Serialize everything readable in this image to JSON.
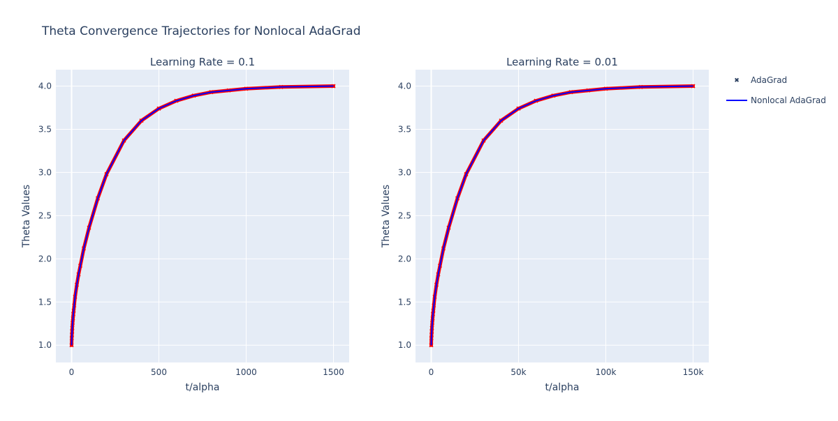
{
  "title": "Theta Convergence Trajectories for Nonlocal AdaGrad",
  "colors": {
    "adagrad": "#ff0000",
    "nonlocal": "#0000ff",
    "plot_bg": "#e5ecf6",
    "grid": "#ffffff",
    "text": "#2a3f5f"
  },
  "legend": {
    "position": "top-right",
    "items": [
      "AdaGrad",
      "Nonlocal AdaGrad"
    ]
  },
  "chart_data": [
    {
      "type": "line",
      "subtitle": "Learning Rate = 0.1",
      "xlabel": "t/alpha",
      "ylabel": "Theta Values",
      "xlim": [
        -90,
        1590
      ],
      "ylim": [
        0.8,
        4.19
      ],
      "xticks": [
        0,
        500,
        1000,
        1500
      ],
      "xtick_labels": [
        "0",
        "500",
        "1000",
        "1500"
      ],
      "yticks": [
        1.0,
        1.5,
        2.0,
        2.5,
        3.0,
        3.5,
        4.0
      ],
      "ytick_labels": [
        "1.0",
        "1.5",
        "2.0",
        "2.5",
        "3.0",
        "3.5",
        "4.0"
      ],
      "series": [
        {
          "name": "AdaGrad",
          "mode": "markers",
          "x": [
            0,
            1,
            2,
            3,
            4,
            6,
            8,
            10,
            12,
            15,
            20,
            30,
            40,
            50,
            70,
            100,
            150,
            200,
            300,
            400,
            500,
            600,
            700,
            800,
            900,
            1000,
            1200,
            1500
          ],
          "y": [
            1.0,
            1.08,
            1.12,
            1.16,
            1.2,
            1.26,
            1.31,
            1.36,
            1.4,
            1.46,
            1.56,
            1.7,
            1.82,
            1.92,
            2.12,
            2.36,
            2.7,
            2.98,
            3.37,
            3.6,
            3.74,
            3.83,
            3.89,
            3.93,
            3.95,
            3.97,
            3.99,
            4.0
          ]
        },
        {
          "name": "Nonlocal AdaGrad",
          "mode": "lines",
          "x": [
            0,
            1,
            2,
            3,
            4,
            6,
            8,
            10,
            12,
            15,
            20,
            30,
            40,
            50,
            70,
            100,
            150,
            200,
            300,
            400,
            500,
            600,
            700,
            800,
            900,
            1000,
            1200,
            1500
          ],
          "y": [
            1.0,
            1.08,
            1.12,
            1.16,
            1.2,
            1.26,
            1.31,
            1.36,
            1.4,
            1.46,
            1.56,
            1.7,
            1.82,
            1.92,
            2.12,
            2.36,
            2.7,
            2.98,
            3.37,
            3.6,
            3.74,
            3.83,
            3.89,
            3.93,
            3.95,
            3.97,
            3.99,
            4.0
          ]
        }
      ]
    },
    {
      "type": "line",
      "subtitle": "Learning Rate = 0.01",
      "xlabel": "t/alpha",
      "ylabel": "Theta Values",
      "xlim": [
        -9000,
        159000
      ],
      "ylim": [
        0.8,
        4.19
      ],
      "xticks": [
        0,
        50000,
        100000,
        150000
      ],
      "xtick_labels": [
        "0",
        "50k",
        "100k",
        "150k"
      ],
      "yticks": [
        1.0,
        1.5,
        2.0,
        2.5,
        3.0,
        3.5,
        4.0
      ],
      "ytick_labels": [
        "1.0",
        "1.5",
        "2.0",
        "2.5",
        "3.0",
        "3.5",
        "4.0"
      ],
      "series": [
        {
          "name": "AdaGrad",
          "mode": "markers",
          "x": [
            0,
            100,
            200,
            300,
            400,
            600,
            800,
            1000,
            1200,
            1500,
            2000,
            3000,
            4000,
            5000,
            7000,
            10000,
            15000,
            20000,
            30000,
            40000,
            50000,
            60000,
            70000,
            80000,
            90000,
            100000,
            120000,
            150000
          ],
          "y": [
            1.0,
            1.08,
            1.12,
            1.16,
            1.2,
            1.26,
            1.31,
            1.36,
            1.4,
            1.46,
            1.56,
            1.7,
            1.82,
            1.92,
            2.12,
            2.36,
            2.7,
            2.98,
            3.37,
            3.6,
            3.74,
            3.83,
            3.89,
            3.93,
            3.95,
            3.97,
            3.99,
            4.0
          ]
        },
        {
          "name": "Nonlocal AdaGrad",
          "mode": "lines",
          "x": [
            0,
            100,
            200,
            300,
            400,
            600,
            800,
            1000,
            1200,
            1500,
            2000,
            3000,
            4000,
            5000,
            7000,
            10000,
            15000,
            20000,
            30000,
            40000,
            50000,
            60000,
            70000,
            80000,
            90000,
            100000,
            120000,
            150000
          ],
          "y": [
            1.0,
            1.08,
            1.12,
            1.16,
            1.2,
            1.26,
            1.31,
            1.36,
            1.4,
            1.46,
            1.56,
            1.7,
            1.82,
            1.92,
            2.12,
            2.36,
            2.7,
            2.98,
            3.37,
            3.6,
            3.74,
            3.83,
            3.89,
            3.93,
            3.95,
            3.97,
            3.99,
            4.0
          ]
        }
      ]
    }
  ]
}
